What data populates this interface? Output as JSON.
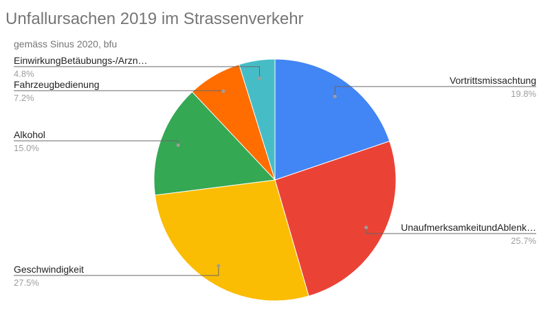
{
  "chart_data": {
    "type": "pie",
    "title": "Unfallursachen 2019 im Strassenverkehr",
    "subtitle": "gemäss Sinus 2020, bfu",
    "slices": [
      {
        "label": "Vortrittsmissachtung",
        "display_label": "Vortrittsmissachtung",
        "value": 19.8,
        "pct_text": "19.8%",
        "color": "#4285F4"
      },
      {
        "label": "UnaufmerksamkeitundAblenk…",
        "display_label": "UnaufmerksamkeitundAblenk…",
        "value": 25.7,
        "pct_text": "25.7%",
        "color": "#EA4335"
      },
      {
        "label": "Geschwindigkeit",
        "display_label": "Geschwindigkeit",
        "value": 27.5,
        "pct_text": "27.5%",
        "color": "#FBBC04"
      },
      {
        "label": "Alkohol",
        "display_label": "Alkohol",
        "value": 15.0,
        "pct_text": "15.0%",
        "color": "#34A853"
      },
      {
        "label": "Fahrzeugbedienung",
        "display_label": "Fahrzeugbedienung",
        "value": 7.2,
        "pct_text": "7.2%",
        "color": "#FF6D01"
      },
      {
        "label": "EinwirkungBetäubungs-/Arzn…",
        "display_label": "EinwirkungBetäubungs-/Arzn…",
        "value": 4.8,
        "pct_text": "4.8%",
        "color": "#46BDC6"
      }
    ],
    "start_angle": "12 o'clock",
    "direction": "clockwise",
    "legend": "none",
    "labels": "outside with leader lines"
  }
}
